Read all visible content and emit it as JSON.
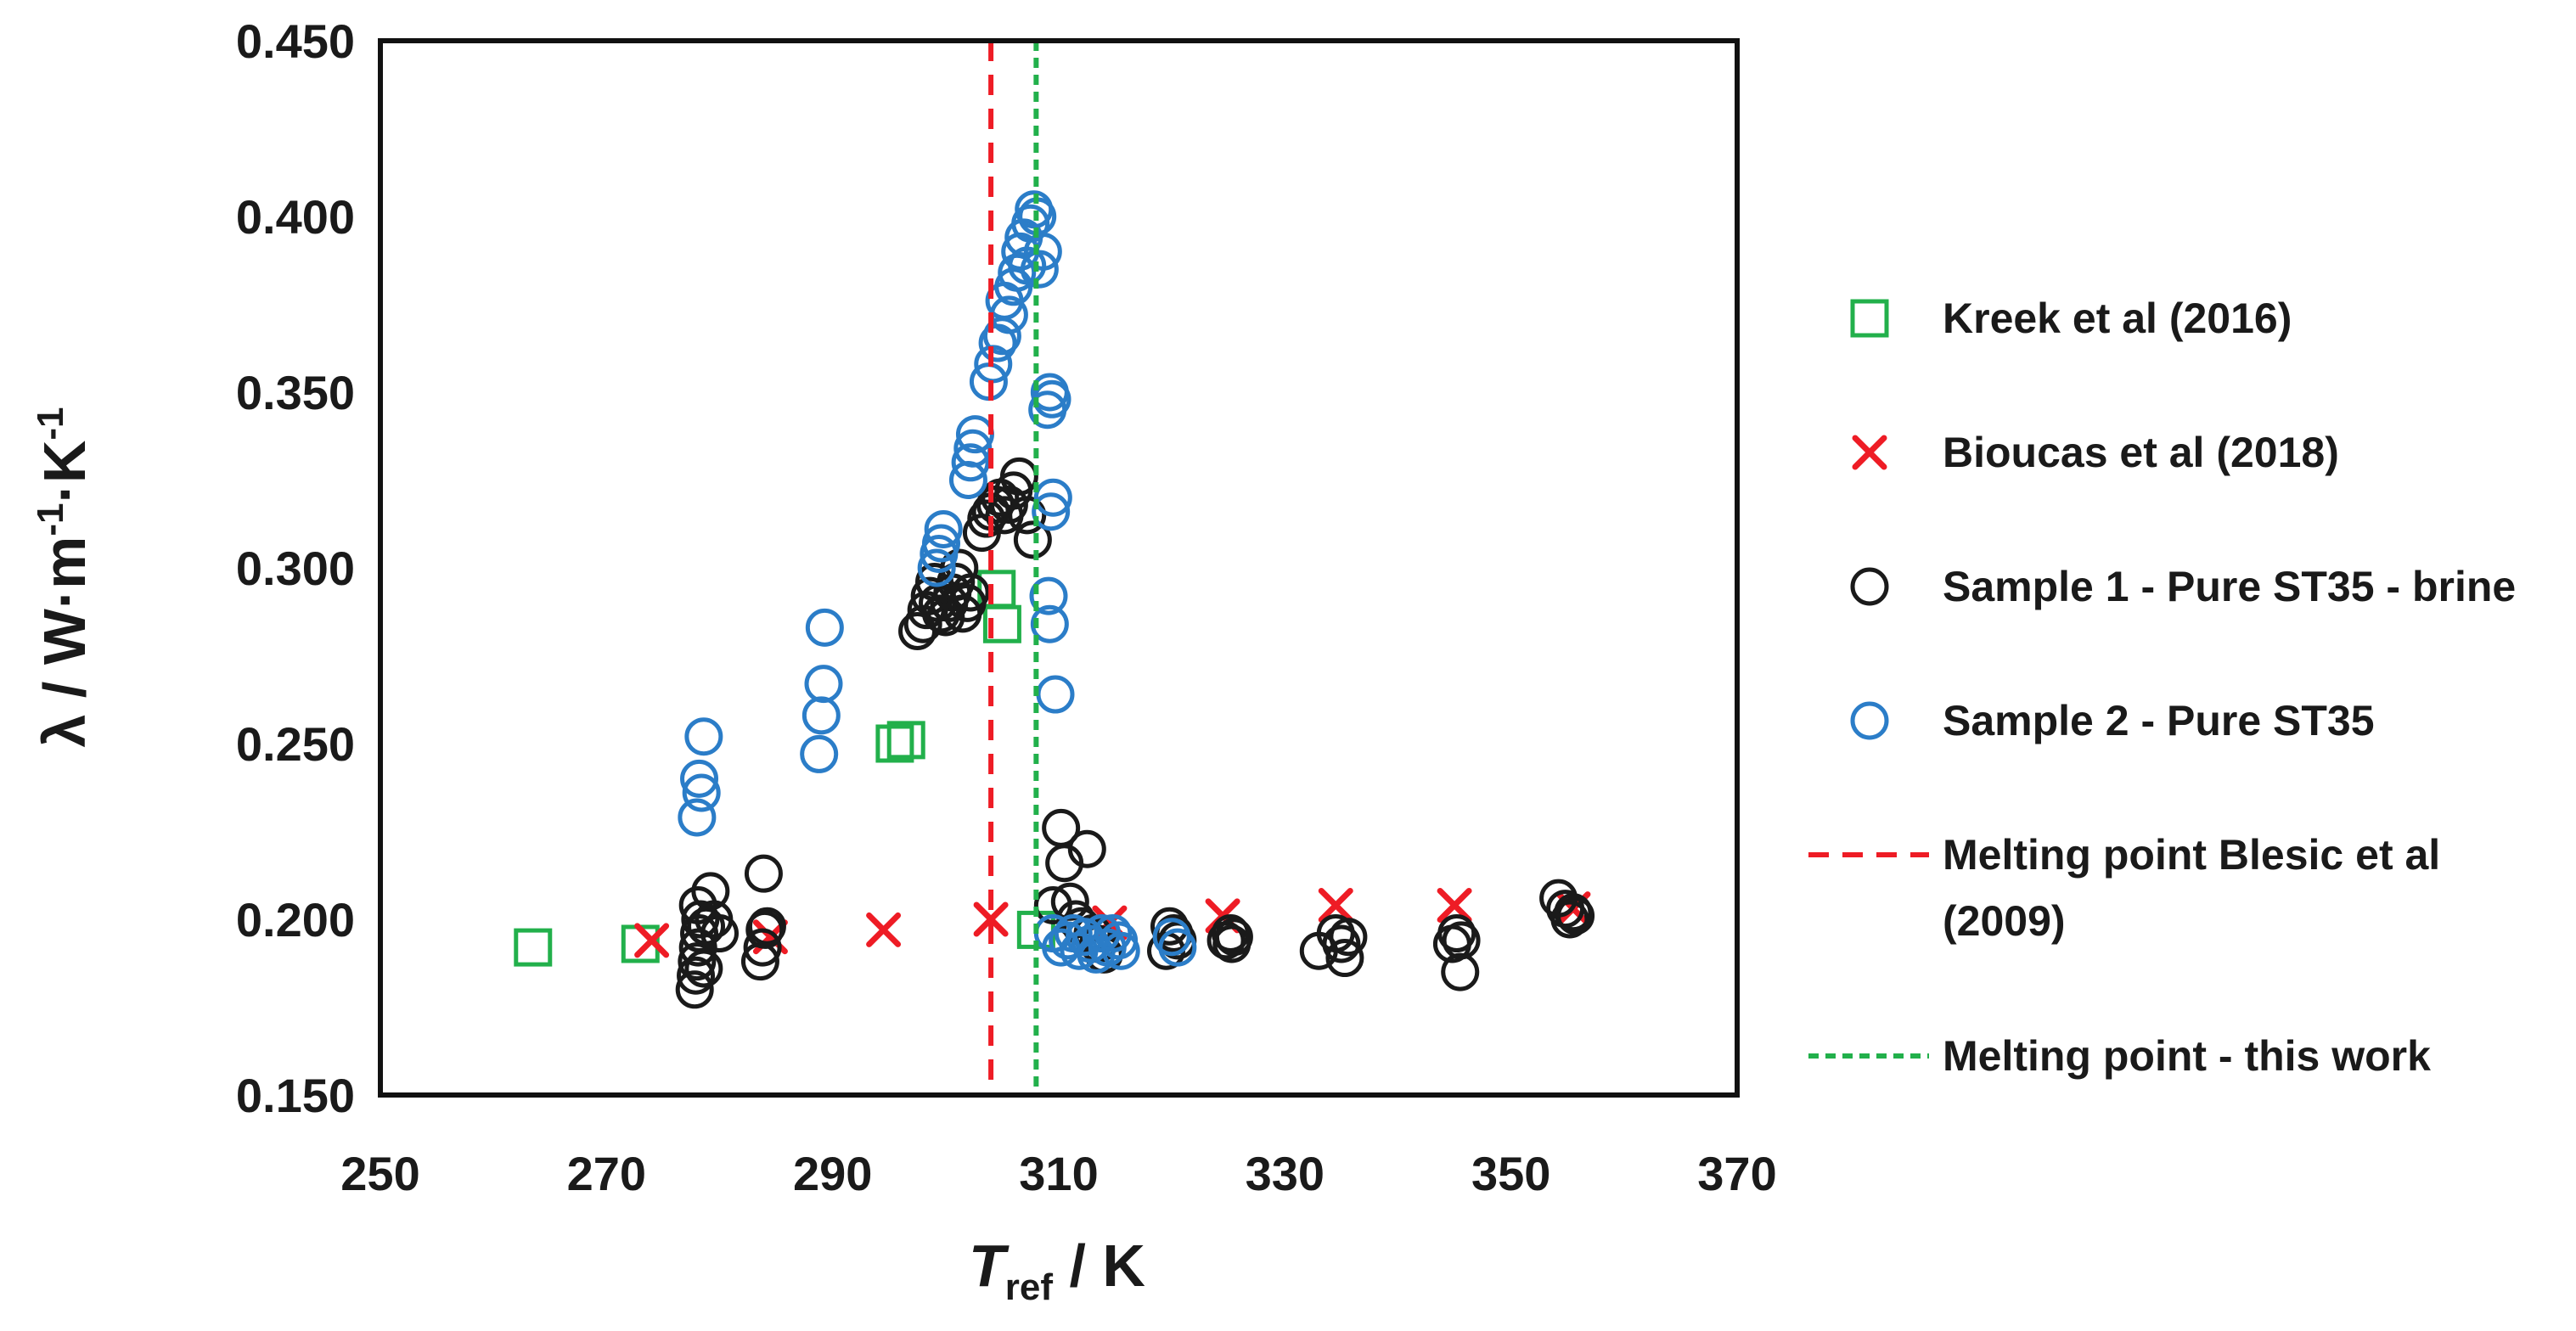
{
  "chart_data": {
    "type": "scatter",
    "title": "",
    "x_axis": {
      "label_main": "T",
      "label_sub": "ref",
      "label_rest": " / K",
      "range": [
        250,
        370
      ],
      "ticks": [
        250,
        270,
        290,
        310,
        330,
        350,
        370
      ],
      "tick_labels": [
        "250",
        "270",
        "290",
        "310",
        "330",
        "350",
        "370"
      ]
    },
    "y_axis": {
      "label_parts": [
        "λ / W·m",
        "-1",
        "·K",
        "-1"
      ],
      "range": [
        0.15,
        0.45
      ],
      "ticks": [
        0.15,
        0.2,
        0.25,
        0.3,
        0.35,
        0.4,
        0.45
      ],
      "tick_labels": [
        "0.150",
        "0.200",
        "0.250",
        "0.300",
        "0.350",
        "0.400",
        "0.450"
      ]
    },
    "grid": false,
    "legend_position": "right",
    "series": [
      {
        "name": "Kreek et al (2016)",
        "marker": "square",
        "color": "#22b04b",
        "points": [
          [
            263.5,
            0.192
          ],
          [
            273,
            0.193
          ],
          [
            295.5,
            0.25
          ],
          [
            296.5,
            0.251
          ],
          [
            304.5,
            0.294
          ],
          [
            305,
            0.284
          ],
          [
            308,
            0.197
          ]
        ]
      },
      {
        "name": "Bioucas et al (2018)",
        "marker": "x",
        "color": "#ee1c25",
        "points": [
          [
            274,
            0.194
          ],
          [
            284.5,
            0.195
          ],
          [
            294.5,
            0.197
          ],
          [
            304,
            0.2
          ],
          [
            314.5,
            0.199
          ],
          [
            324.5,
            0.201
          ],
          [
            334.5,
            0.204
          ],
          [
            345,
            0.204
          ],
          [
            355.5,
            0.203
          ]
        ]
      },
      {
        "name": "Sample 1 - Pure ST35 - brine",
        "marker": "circle",
        "color": "#1a1a1a",
        "points": [
          [
            277.8,
            0.18
          ],
          [
            277.9,
            0.184
          ],
          [
            278,
            0.188
          ],
          [
            278.1,
            0.192
          ],
          [
            278.2,
            0.196
          ],
          [
            278.3,
            0.2
          ],
          [
            278.1,
            0.204
          ],
          [
            278.6,
            0.186
          ],
          [
            278.8,
            0.198
          ],
          [
            279.2,
            0.208
          ],
          [
            279.5,
            0.2
          ],
          [
            280,
            0.196
          ],
          [
            283.6,
            0.188
          ],
          [
            283.8,
            0.192
          ],
          [
            284,
            0.197
          ],
          [
            284.2,
            0.198
          ],
          [
            283.9,
            0.213
          ],
          [
            297.5,
            0.282
          ],
          [
            298,
            0.284
          ],
          [
            298.3,
            0.288
          ],
          [
            298.6,
            0.292
          ],
          [
            299,
            0.296
          ],
          [
            299.3,
            0.29
          ],
          [
            299.6,
            0.287
          ],
          [
            300,
            0.286
          ],
          [
            300.3,
            0.29
          ],
          [
            300.6,
            0.293
          ],
          [
            300.9,
            0.296
          ],
          [
            301.2,
            0.3
          ],
          [
            301.5,
            0.287
          ],
          [
            301.9,
            0.29
          ],
          [
            302.2,
            0.293
          ],
          [
            303.2,
            0.31
          ],
          [
            303.6,
            0.314
          ],
          [
            304,
            0.316
          ],
          [
            304.4,
            0.318
          ],
          [
            304.8,
            0.32
          ],
          [
            305.2,
            0.315
          ],
          [
            305.6,
            0.318
          ],
          [
            306,
            0.322
          ],
          [
            306.5,
            0.326
          ],
          [
            307.2,
            0.315
          ],
          [
            307.7,
            0.308
          ],
          [
            309.5,
            0.204
          ],
          [
            310.2,
            0.226
          ],
          [
            310.5,
            0.216
          ],
          [
            311,
            0.205
          ],
          [
            311.5,
            0.2
          ],
          [
            312,
            0.198
          ],
          [
            312.5,
            0.22
          ],
          [
            313,
            0.196
          ],
          [
            313.5,
            0.193
          ],
          [
            314,
            0.19
          ],
          [
            319.5,
            0.191
          ],
          [
            319.8,
            0.198
          ],
          [
            320.2,
            0.196
          ],
          [
            320.5,
            0.194
          ],
          [
            324.8,
            0.194
          ],
          [
            325.2,
            0.196
          ],
          [
            325.5,
            0.195
          ],
          [
            325.3,
            0.193
          ],
          [
            333,
            0.191
          ],
          [
            334.5,
            0.196
          ],
          [
            335,
            0.193
          ],
          [
            335.3,
            0.189
          ],
          [
            335.6,
            0.195
          ],
          [
            344.8,
            0.193
          ],
          [
            345.2,
            0.196
          ],
          [
            345.5,
            0.185
          ],
          [
            345.6,
            0.194
          ],
          [
            354.2,
            0.206
          ],
          [
            354.8,
            0.203
          ],
          [
            355.2,
            0.2
          ],
          [
            355.5,
            0.202
          ],
          [
            355.7,
            0.201
          ]
        ]
      },
      {
        "name": "Sample 2 - Pure ST35",
        "marker": "circle",
        "color": "#2b7dc8",
        "points": [
          [
            278,
            0.229
          ],
          [
            278.2,
            0.24
          ],
          [
            278.4,
            0.236
          ],
          [
            278.6,
            0.252
          ],
          [
            288.8,
            0.247
          ],
          [
            289,
            0.258
          ],
          [
            289.2,
            0.267
          ],
          [
            289.3,
            0.283
          ],
          [
            299.2,
            0.3
          ],
          [
            299.4,
            0.304
          ],
          [
            299.6,
            0.307
          ],
          [
            299.8,
            0.311
          ],
          [
            302,
            0.325
          ],
          [
            302.2,
            0.33
          ],
          [
            302.4,
            0.334
          ],
          [
            302.6,
            0.338
          ],
          [
            303.8,
            0.353
          ],
          [
            304.2,
            0.358
          ],
          [
            304.6,
            0.364
          ],
          [
            305,
            0.366
          ],
          [
            305.2,
            0.376
          ],
          [
            305.6,
            0.372
          ],
          [
            306,
            0.38
          ],
          [
            306.3,
            0.384
          ],
          [
            306.6,
            0.39
          ],
          [
            306.9,
            0.394
          ],
          [
            307.2,
            0.386
          ],
          [
            307.5,
            0.398
          ],
          [
            307.8,
            0.402
          ],
          [
            308.1,
            0.4
          ],
          [
            308.3,
            0.385
          ],
          [
            308.6,
            0.39
          ],
          [
            309,
            0.345
          ],
          [
            309.2,
            0.35
          ],
          [
            309.4,
            0.348
          ],
          [
            309.5,
            0.32
          ],
          [
            309.3,
            0.316
          ],
          [
            309.1,
            0.292
          ],
          [
            309.2,
            0.284
          ],
          [
            309.7,
            0.264
          ],
          [
            309.5,
            0.196
          ],
          [
            310.2,
            0.192
          ],
          [
            310.8,
            0.194
          ],
          [
            311.3,
            0.196
          ],
          [
            311.8,
            0.191
          ],
          [
            312.3,
            0.195
          ],
          [
            312.8,
            0.193
          ],
          [
            313.3,
            0.19
          ],
          [
            313.8,
            0.196
          ],
          [
            314.3,
            0.192
          ],
          [
            314.8,
            0.196
          ],
          [
            315.3,
            0.194
          ],
          [
            315.5,
            0.191
          ],
          [
            320,
            0.195
          ],
          [
            320.5,
            0.192
          ]
        ]
      },
      {
        "name": "Melting point Blesic et al (2009)",
        "marker": "vline-dashed",
        "color": "#ee1c25",
        "x": 304
      },
      {
        "name": "Melting point - this work",
        "marker": "vline-dotted",
        "color": "#22b04b",
        "x": 308
      }
    ]
  }
}
